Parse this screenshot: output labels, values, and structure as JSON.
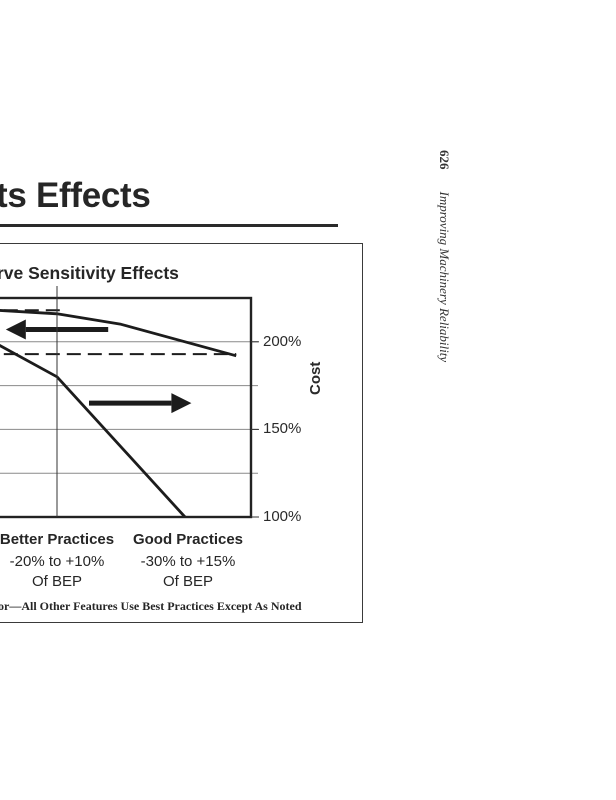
{
  "page": {
    "heading": "ts Effects",
    "running_head": {
      "page_number": "626",
      "book_title": "Improving Machinery Reliability"
    }
  },
  "chart_data": {
    "type": "line",
    "title": "rve Sensitivity Effects",
    "ylabel": "Cost",
    "ylim": [
      100,
      225
    ],
    "y_ticks": [
      {
        "value": 100,
        "label": "100%"
      },
      {
        "value": 150,
        "label": "150%"
      },
      {
        "value": 200,
        "label": "200%"
      }
    ],
    "gridlines": [
      125,
      150,
      175,
      200
    ],
    "categories": [
      {
        "name": "Better Practices",
        "range": "-20% to +10%",
        "of": "Of BEP"
      },
      {
        "name": "Good Practices",
        "range": "-30% to +15%",
        "of": "Of BEP"
      }
    ],
    "category_divider_x": 0.5,
    "x_range": [
      0,
      2.43
    ],
    "series": [
      {
        "name": "upper-curve",
        "style": "solid",
        "points": [
          [
            -0.9,
            222
          ],
          [
            0.5,
            216
          ],
          [
            1.0,
            210
          ],
          [
            1.9,
            192
          ]
        ]
      },
      {
        "name": "lower-curve",
        "style": "solid",
        "points": [
          [
            -0.9,
            213
          ],
          [
            0.0,
            200
          ],
          [
            0.5,
            180
          ],
          [
            1.5,
            100
          ]
        ]
      },
      {
        "name": "upper-dashed-reference",
        "style": "dashed",
        "points": [
          [
            -0.9,
            218
          ],
          [
            0.55,
            218
          ]
        ]
      },
      {
        "name": "lower-dashed-reference",
        "style": "dashed",
        "points": [
          [
            -0.9,
            193
          ],
          [
            1.9,
            193
          ]
        ]
      }
    ],
    "annotations": [
      {
        "type": "arrow",
        "direction": "left",
        "from": [
          0.9,
          207
        ],
        "to": [
          0.1,
          207
        ]
      },
      {
        "type": "arrow",
        "direction": "right",
        "from": [
          0.75,
          165
        ],
        "to": [
          1.55,
          165
        ]
      }
    ],
    "footnote": "or—All Other Features Use Best Practices Except As Noted"
  }
}
